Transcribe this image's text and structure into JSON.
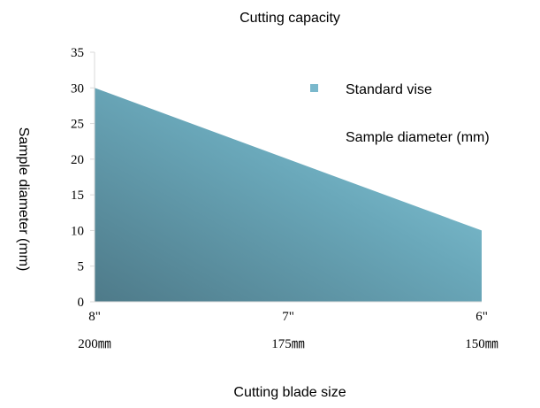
{
  "chart_data": {
    "type": "area",
    "title": "Cutting capacity",
    "xlabel": "Cutting blade size",
    "ylabel": "Sample diameter (mm)",
    "categories": [
      "8\"",
      "7\"",
      "6\""
    ],
    "category_sublabels": [
      "200㎜",
      "175㎜",
      "150㎜"
    ],
    "series": [
      {
        "name": "Standard vise",
        "values": [
          30,
          20,
          10
        ]
      }
    ],
    "legend": [
      "Standard vise",
      "Sample diameter (mm)"
    ],
    "legend_position": "top-right",
    "ylim": [
      0,
      35
    ],
    "yticks": [
      0,
      5,
      10,
      15,
      20,
      25,
      30,
      35
    ],
    "grid": false,
    "colors": {
      "fill_dark": "#4e7a89",
      "fill_mid": "#6aa8ba",
      "fill_light": "#8ccfe0",
      "legend_marker": "#7ab8cc",
      "axis": "#d9d9d9"
    }
  }
}
